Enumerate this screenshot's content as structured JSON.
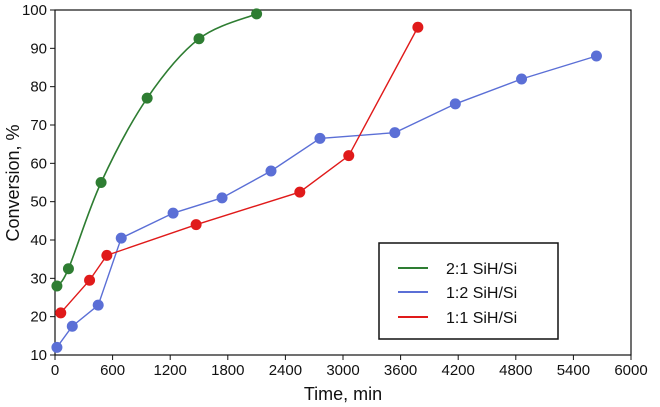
{
  "chart_data": {
    "type": "line",
    "xlabel": "Time, min",
    "ylabel": "Conversion, %",
    "xlim": [
      0,
      6000
    ],
    "ylim": [
      10,
      100
    ],
    "xticks": [
      0,
      600,
      1200,
      1800,
      2400,
      3000,
      3600,
      4200,
      4800,
      5400,
      6000
    ],
    "yticks": [
      10,
      20,
      30,
      40,
      50,
      60,
      70,
      80,
      90,
      100
    ],
    "grid": false,
    "legend_position": "bottom-right",
    "series": [
      {
        "name": "2:1 SiH/Si",
        "color": "#2e7d32",
        "x": [
          20,
          140,
          480,
          960,
          1500,
          2100
        ],
        "y": [
          28,
          32.5,
          55,
          77,
          92.5,
          99
        ]
      },
      {
        "name": "1:2 SiH/Si",
        "color": "#5b6fd6",
        "x": [
          20,
          180,
          450,
          690,
          1230,
          1740,
          2250,
          2760,
          3540,
          4170,
          4860,
          5640
        ],
        "y": [
          12,
          17.5,
          23,
          40.5,
          47,
          51,
          58,
          66.5,
          68,
          75.5,
          82,
          88
        ]
      },
      {
        "name": "1:1 SiH/Si",
        "color": "#e01a1a",
        "x": [
          60,
          360,
          540,
          1470,
          2550,
          3060,
          3780
        ],
        "y": [
          21,
          29.5,
          36,
          44,
          52.5,
          62,
          95.5
        ]
      }
    ]
  }
}
